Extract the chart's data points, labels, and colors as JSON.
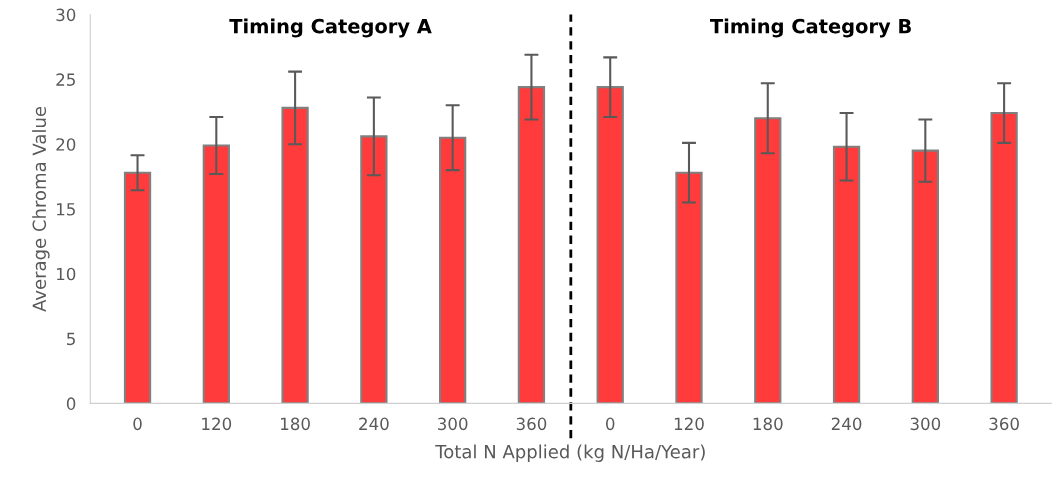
{
  "chart_data": {
    "type": "bar",
    "categories": [
      "0",
      "120",
      "180",
      "240",
      "300",
      "360",
      "0",
      "120",
      "180",
      "240",
      "300",
      "360"
    ],
    "values": [
      17.8,
      19.9,
      22.8,
      20.6,
      20.5,
      24.4,
      24.4,
      17.8,
      22.0,
      19.8,
      19.5,
      22.4
    ],
    "errors": [
      1.35,
      2.2,
      2.8,
      3.0,
      2.5,
      2.5,
      2.3,
      2.3,
      2.7,
      2.6,
      2.4,
      2.3
    ],
    "color": "#ff3b3b",
    "xlabel": "Total N Applied (kg N/Ha/Year)",
    "ylabel": "Average Chroma Value",
    "ylim": [
      0,
      30
    ],
    "yticks": [
      0,
      5,
      10,
      15,
      20,
      25,
      30
    ],
    "annotations": [
      "Timing Category A",
      "Timing Category B"
    ],
    "grid": false,
    "legend": false
  }
}
